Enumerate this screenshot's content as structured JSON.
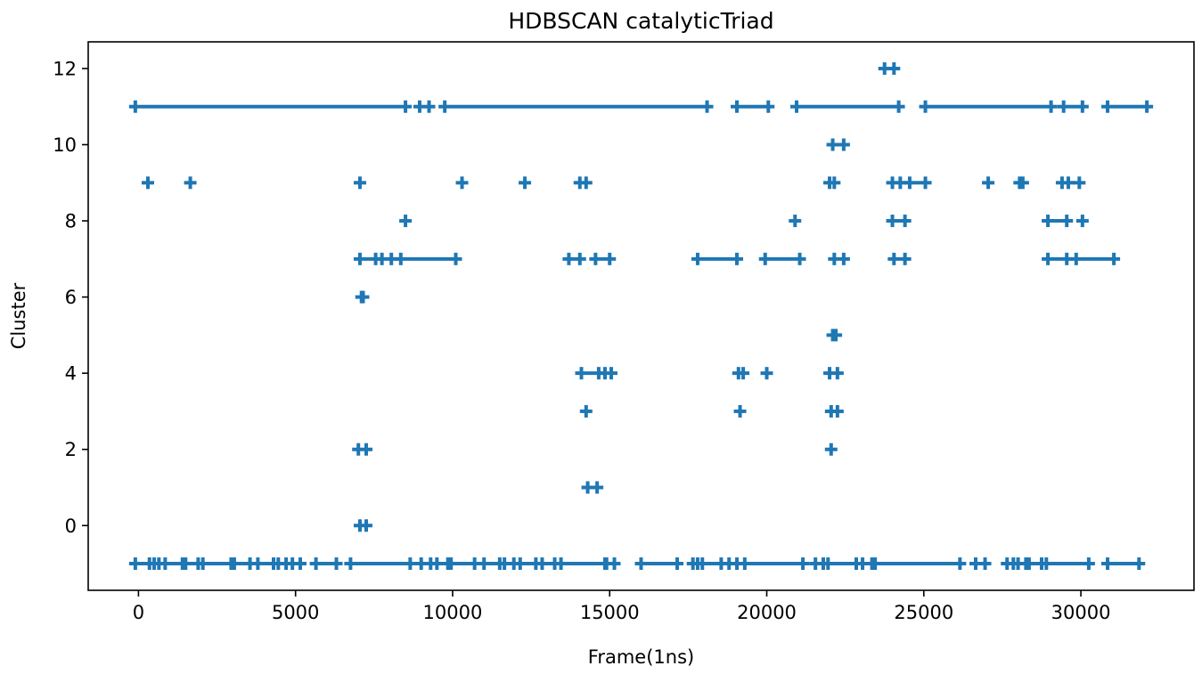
{
  "chart_data": {
    "type": "scatter",
    "title": "HDBSCAN catalyticTriad",
    "xlabel": "Frame(1ns)",
    "ylabel": "Cluster",
    "xlim": [
      -1600,
      33600
    ],
    "ylim": [
      -1.7,
      12.7
    ],
    "xticks": [
      0,
      5000,
      10000,
      15000,
      20000,
      25000,
      30000
    ],
    "xtick_labels": [
      "0",
      "5000",
      "10000",
      "15000",
      "20000",
      "25000",
      "30000"
    ],
    "yticks": [
      0,
      2,
      4,
      6,
      8,
      10,
      12
    ],
    "ytick_labels": [
      "0",
      "2",
      "4",
      "6",
      "8",
      "10",
      "12"
    ],
    "grid": false,
    "marker": "plus",
    "series": [
      {
        "color": "#1f77b4",
        "runs": [
          {
            "y": 12,
            "x": [
              [
                23750,
                24050
              ]
            ]
          },
          {
            "y": 11,
            "x": [
              [
                -100,
                8500
              ],
              [
                8950,
                9250
              ],
              [
                9750,
                18100
              ],
              [
                19050,
                20050
              ],
              [
                20950,
                24200
              ],
              [
                25050,
                29050
              ],
              [
                29450,
                30050
              ],
              [
                30850,
                32100
              ]
            ]
          },
          {
            "y": 10,
            "x": [
              [
                22100,
                22450
              ]
            ]
          },
          {
            "y": 9,
            "x": [
              [
                300,
                300
              ],
              [
                1650,
                1650
              ],
              [
                7050,
                7050
              ],
              [
                10300,
                10300
              ],
              [
                12300,
                12300
              ],
              [
                14050,
                14250
              ],
              [
                22000,
                22150
              ],
              [
                24000,
                24250
              ],
              [
                24550,
                25050
              ],
              [
                27050,
                27050
              ],
              [
                28050,
                28150
              ],
              [
                29400,
                29600
              ],
              [
                29950,
                29950
              ]
            ]
          },
          {
            "y": 8,
            "x": [
              [
                8500,
                8500
              ],
              [
                20900,
                20900
              ],
              [
                24000,
                24400
              ],
              [
                28950,
                29550
              ],
              [
                30050,
                30050
              ]
            ]
          },
          {
            "y": 7,
            "x": [
              [
                7050,
                7550
              ],
              [
                7750,
                8050
              ],
              [
                8350,
                10100
              ],
              [
                13700,
                14050
              ],
              [
                14550,
                15000
              ],
              [
                17800,
                19050
              ],
              [
                19950,
                21050
              ],
              [
                22150,
                22450
              ],
              [
                24050,
                24400
              ],
              [
                28950,
                29550
              ],
              [
                29850,
                31050
              ]
            ]
          },
          {
            "y": 6,
            "x": [
              [
                7100,
                7150
              ]
            ]
          },
          {
            "y": 5,
            "x": [
              [
                22100,
                22200
              ]
            ]
          },
          {
            "y": 4,
            "x": [
              [
                14100,
                14650
              ],
              [
                14850,
                15050
              ],
              [
                19100,
                19250
              ],
              [
                20000,
                20000
              ],
              [
                22000,
                22250
              ]
            ]
          },
          {
            "y": 3,
            "x": [
              [
                14250,
                14250
              ],
              [
                19150,
                19150
              ],
              [
                22050,
                22250
              ]
            ]
          },
          {
            "y": 2,
            "x": [
              [
                7000,
                7250
              ],
              [
                22050,
                22050
              ]
            ]
          },
          {
            "y": 1,
            "x": [
              [
                14300,
                14600
              ]
            ]
          },
          {
            "y": 0,
            "x": [
              [
                7050,
                7250
              ]
            ]
          },
          {
            "y": -1,
            "x": [
              [
                -100,
                350
              ],
              [
                500,
                650
              ],
              [
                850,
                1400
              ],
              [
                1500,
                1900
              ],
              [
                2050,
                2950
              ],
              [
                3050,
                3550
              ],
              [
                3800,
                4300
              ],
              [
                4450,
                4700
              ],
              [
                4900,
                5150
              ],
              [
                5650,
                6300
              ],
              [
                6750,
                8650
              ],
              [
                9000,
                9300
              ],
              [
                9500,
                9850
              ],
              [
                9950,
                10700
              ],
              [
                11000,
                11500
              ],
              [
                11650,
                11950
              ],
              [
                12150,
                12650
              ],
              [
                12850,
                13250
              ],
              [
                13450,
                14850
              ],
              [
                14900,
                15150
              ],
              [
                16000,
                17150
              ],
              [
                17650,
                17800
              ],
              [
                17950,
                18550
              ],
              [
                18800,
                19050
              ],
              [
                19300,
                21150
              ],
              [
                21550,
                21800
              ],
              [
                21950,
                22850
              ],
              [
                23050,
                23350
              ],
              [
                23450,
                26150
              ],
              [
                26650,
                26950
              ],
              [
                27650,
                27850
              ],
              [
                28000,
                28250
              ],
              [
                28350,
                28750
              ],
              [
                28900,
                30250
              ],
              [
                30850,
                31850
              ]
            ]
          }
        ]
      }
    ]
  }
}
